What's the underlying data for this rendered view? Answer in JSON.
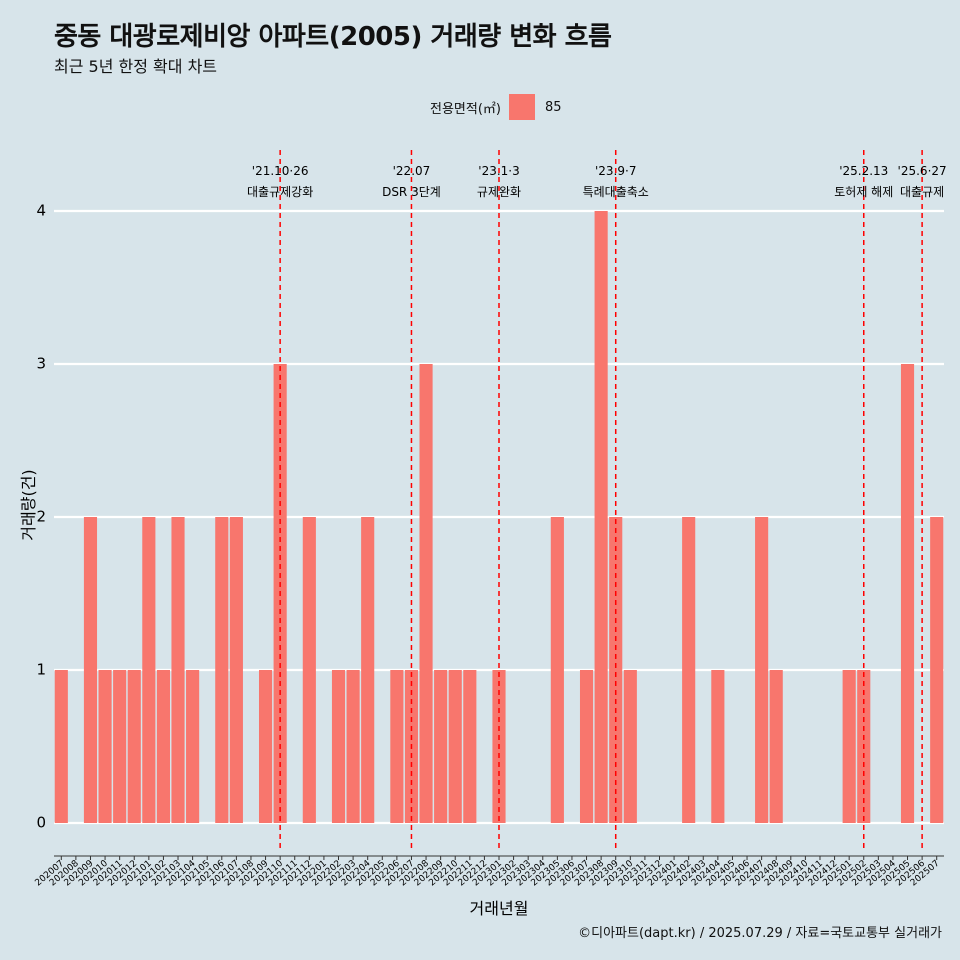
{
  "header": {
    "title": "중동 대광로제비앙 아파트(2005) 거래량 변화 흐름",
    "subtitle": "최근 5년 한정 확대 차트"
  },
  "legend": {
    "title": "전용면적(㎡)",
    "label": "85"
  },
  "caption": "©디아파트(dapt.kr) / 2025.07.29 / 자료=국토교통부 실거래가",
  "colors": {
    "background": "#d7e4ea",
    "bar": "#f8766d",
    "event_line": "#ff0000",
    "grid": "#ffffff"
  },
  "chart_data": {
    "type": "bar",
    "title": "중동 대광로제비앙 아파트(2005) 거래량 변화 흐름",
    "subtitle": "최근 5년 한정 확대 차트",
    "xlabel": "거래년월",
    "ylabel": "거래량(건)",
    "ylim": [
      0,
      4
    ],
    "yticks": [
      0,
      1,
      2,
      3,
      4
    ],
    "grid": "horizontal major lines, white",
    "legend_position": "top",
    "categories": [
      "202007",
      "202008",
      "202009",
      "202010",
      "202011",
      "202012",
      "202101",
      "202102",
      "202103",
      "202104",
      "202105",
      "202106",
      "202107",
      "202108",
      "202109",
      "202110",
      "202111",
      "202112",
      "202201",
      "202202",
      "202203",
      "202204",
      "202205",
      "202206",
      "202207",
      "202208",
      "202209",
      "202210",
      "202211",
      "202212",
      "202301",
      "202302",
      "202303",
      "202304",
      "202305",
      "202306",
      "202307",
      "202308",
      "202309",
      "202310",
      "202311",
      "202312",
      "202401",
      "202402",
      "202403",
      "202404",
      "202405",
      "202406",
      "202407",
      "202408",
      "202409",
      "202410",
      "202411",
      "202412",
      "202501",
      "202502",
      "202503",
      "202504",
      "202505",
      "202506",
      "202507"
    ],
    "series": [
      {
        "name": "85",
        "values": [
          1,
          0,
          2,
          1,
          1,
          1,
          2,
          1,
          2,
          1,
          0,
          2,
          2,
          0,
          1,
          3,
          0,
          2,
          0,
          1,
          1,
          2,
          0,
          1,
          1,
          3,
          1,
          1,
          1,
          0,
          1,
          0,
          0,
          0,
          2,
          0,
          1,
          4,
          2,
          1,
          0,
          0,
          0,
          2,
          0,
          1,
          0,
          0,
          2,
          1,
          0,
          0,
          0,
          0,
          1,
          1,
          0,
          0,
          3,
          0,
          2
        ]
      }
    ],
    "annotations": [
      {
        "x": "202110",
        "label1": "'21.10·26",
        "label2": "대출규제강화"
      },
      {
        "x": "202207",
        "label1": "'22.07",
        "label2": "DSR 3단계"
      },
      {
        "x": "202301",
        "label1": "'23.1·3",
        "label2": "규제완화"
      },
      {
        "x": "202309",
        "label1": "'23.9·7",
        "label2": "특례대출축소"
      },
      {
        "x": "202502",
        "label1": "'25.2.13",
        "label2": "토허제 해제"
      },
      {
        "x": "202506",
        "label1": "'25.6·27",
        "label2": "대출규제"
      }
    ]
  }
}
